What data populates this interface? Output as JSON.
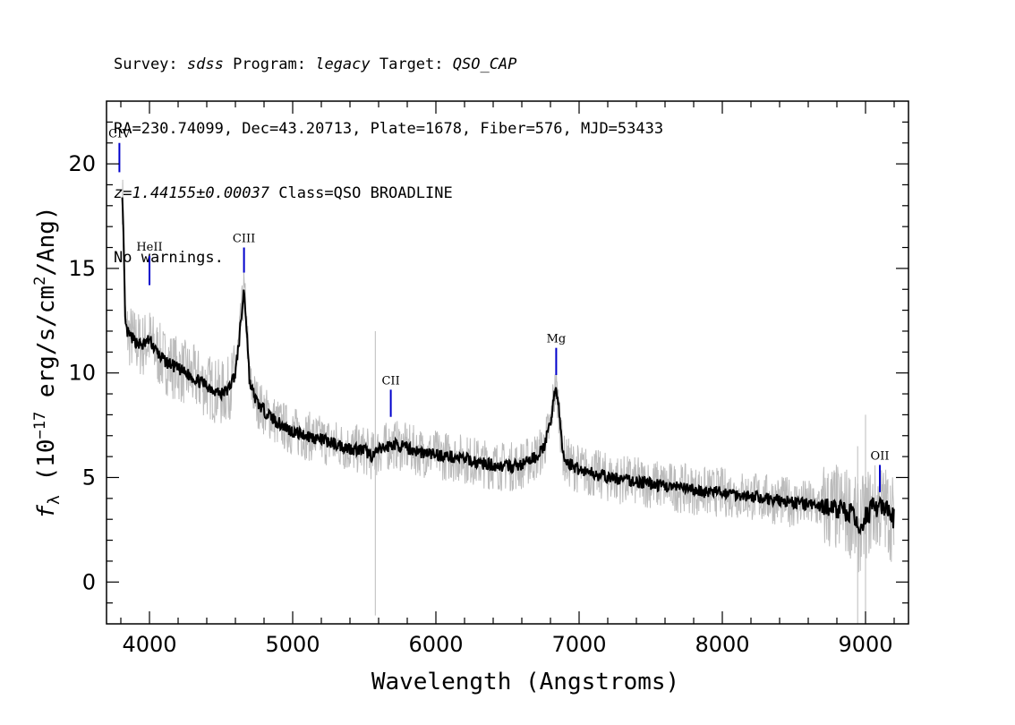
{
  "header": {
    "line1": {
      "survey_label": "Survey: ",
      "survey": "sdss",
      "program_label": " Program: ",
      "program": "legacy",
      "target_label": " Target: ",
      "target": "QSO_CAP"
    },
    "line2": "RA=230.74099, Dec=43.20713, Plate=1678, Fiber=576, MJD=53433",
    "line3": {
      "z": "z=1.44155±0.00037",
      "class": " Class=QSO BROADLINE"
    },
    "line4": "No warnings."
  },
  "chart_data": {
    "type": "line",
    "xlabel": "Wavelength (Angstroms)",
    "ylabel": "f_λ (10^-17 erg/s/cm^2/Ang)",
    "xlim": [
      3700,
      9300
    ],
    "ylim": [
      -2,
      23
    ],
    "xticks": [
      4000,
      5000,
      6000,
      7000,
      8000,
      9000
    ],
    "yticks": [
      0,
      5,
      10,
      15,
      20
    ],
    "colors": {
      "flux": "#000000",
      "noisy": "#bbbbbb",
      "lines": "#0000cc"
    },
    "series": [
      {
        "role": "smoothed flux",
        "x": [
          3810,
          3820,
          3830,
          3840,
          3860,
          3900,
          3950,
          4000,
          4050,
          4100,
          4200,
          4300,
          4400,
          4500,
          4550,
          4600,
          4630,
          4660,
          4680,
          4700,
          4750,
          4800,
          4900,
          5000,
          5100,
          5200,
          5300,
          5400,
          5500,
          5560,
          5600,
          5700,
          5800,
          5900,
          6000,
          6100,
          6200,
          6300,
          6400,
          6500,
          6600,
          6700,
          6750,
          6800,
          6820,
          6840,
          6860,
          6880,
          6900,
          6950,
          7000,
          7100,
          7200,
          7300,
          7400,
          7500,
          7600,
          7700,
          7800,
          7900,
          8000,
          8100,
          8200,
          8300,
          8400,
          8500,
          8600,
          8700,
          8800,
          8900,
          8950,
          9000,
          9050,
          9100,
          9150,
          9200
        ],
        "y": [
          18.7,
          16.0,
          12.5,
          12.0,
          11.8,
          11.5,
          11.3,
          11.6,
          11.0,
          10.6,
          10.2,
          9.8,
          9.4,
          9.0,
          9.2,
          10.0,
          11.8,
          14.0,
          12.0,
          9.5,
          8.6,
          8.2,
          7.6,
          7.2,
          7.0,
          6.8,
          6.6,
          6.4,
          6.3,
          6.0,
          6.3,
          6.6,
          6.4,
          6.2,
          6.1,
          6.0,
          5.9,
          5.7,
          5.6,
          5.5,
          5.6,
          6.0,
          6.4,
          7.5,
          8.8,
          9.3,
          8.2,
          6.5,
          5.8,
          5.6,
          5.4,
          5.2,
          5.0,
          4.9,
          4.8,
          4.7,
          4.6,
          4.5,
          4.4,
          4.3,
          4.3,
          4.2,
          4.1,
          4.0,
          3.9,
          3.8,
          3.7,
          3.6,
          3.5,
          3.3,
          2.5,
          3.2,
          3.5,
          3.6,
          3.4,
          3.0
        ]
      }
    ],
    "line_markers": [
      {
        "label": "CIV",
        "x": 3790,
        "y_top": 21.0,
        "y_bottom": 19.6
      },
      {
        "label": "HeII",
        "x": 4000,
        "y_top": 15.6,
        "y_bottom": 14.2
      },
      {
        "label": "CIII",
        "x": 4660,
        "y_top": 16.0,
        "y_bottom": 14.8
      },
      {
        "label": "CII",
        "x": 5685,
        "y_top": 9.2,
        "y_bottom": 7.9
      },
      {
        "label": "Mg",
        "x": 6840,
        "y_top": 11.2,
        "y_bottom": 9.9
      },
      {
        "label": "OII",
        "x": 9100,
        "y_top": 5.6,
        "y_bottom": 4.3
      }
    ]
  }
}
